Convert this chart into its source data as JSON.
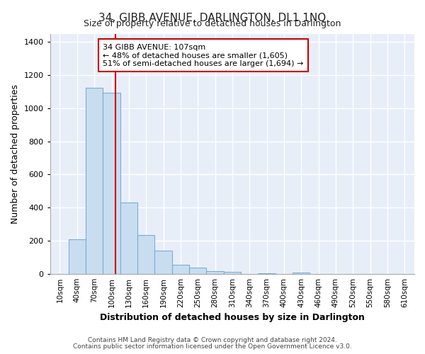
{
  "title": "34, GIBB AVENUE, DARLINGTON, DL1 1NQ",
  "subtitle": "Size of property relative to detached houses in Darlington",
  "xlabel": "Distribution of detached houses by size in Darlington",
  "ylabel": "Number of detached properties",
  "bar_labels": [
    "10sqm",
    "40sqm",
    "70sqm",
    "100sqm",
    "130sqm",
    "160sqm",
    "190sqm",
    "220sqm",
    "250sqm",
    "280sqm",
    "310sqm",
    "340sqm",
    "370sqm",
    "400sqm",
    "430sqm",
    "460sqm",
    "490sqm",
    "520sqm",
    "550sqm",
    "580sqm",
    "610sqm"
  ],
  "bar_heights": [
    0,
    210,
    1125,
    1095,
    430,
    235,
    140,
    55,
    37,
    15,
    10,
    0,
    5,
    0,
    8,
    0,
    0,
    0,
    0,
    0,
    0
  ],
  "bar_color": "#c9ddf0",
  "bar_edge_color": "#7aadd4",
  "vline_x": 107,
  "vline_color": "#cc0000",
  "annotation_title": "34 GIBB AVENUE: 107sqm",
  "annotation_line1": "← 48% of detached houses are smaller (1,605)",
  "annotation_line2": "51% of semi-detached houses are larger (1,694) →",
  "annotation_box_color": "#ffffff",
  "annotation_box_edge": "#cc0000",
  "ylim": [
    0,
    1450
  ],
  "yticks": [
    0,
    200,
    400,
    600,
    800,
    1000,
    1200,
    1400
  ],
  "footnote1": "Contains HM Land Registry data © Crown copyright and database right 2024.",
  "footnote2": "Contains public sector information licensed under the Open Government Licence v3.0.",
  "background_color": "#ffffff",
  "plot_bg_color": "#e8eef8",
  "grid_color": "#ffffff",
  "bin_width": 30
}
